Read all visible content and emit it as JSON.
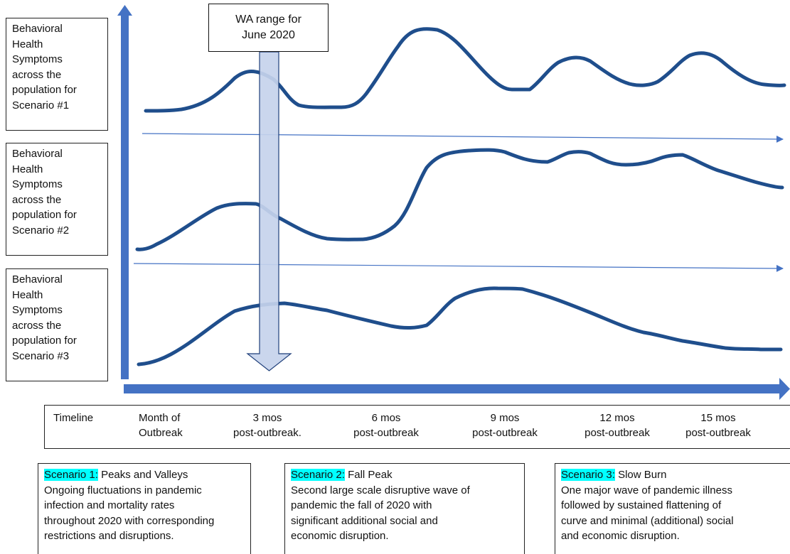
{
  "callout": {
    "line1": "WA range for",
    "line2": "June 2020"
  },
  "y_labels": [
    {
      "lines": [
        "Behavioral",
        "Health",
        "Symptoms",
        "across the",
        "population for",
        "Scenario #1"
      ]
    },
    {
      "lines": [
        "Behavioral",
        "Health",
        "Symptoms",
        "across the",
        "population for",
        "Scenario #2"
      ]
    },
    {
      "lines": [
        "Behavioral",
        "Health",
        "Symptoms",
        "across the",
        "population for",
        "Scenario #3"
      ]
    }
  ],
  "timeline": {
    "title": "Timeline",
    "ticks": [
      {
        "line1": "Month of",
        "line2": "Outbreak"
      },
      {
        "line1": "3 mos",
        "line2": "post-outbreak."
      },
      {
        "line1": "6 mos",
        "line2": "post-outbreak"
      },
      {
        "line1": "9 mos",
        "line2": "post-outbreak"
      },
      {
        "line1": "12 mos",
        "line2": "post-outbreak"
      },
      {
        "line1": "15 mos",
        "line2": "post-outbreak"
      }
    ]
  },
  "scenarios": [
    {
      "tag": "Scenario 1:",
      "name": "Peaks and Valleys",
      "desc": [
        "Ongoing fluctuations in pandemic",
        "infection and mortality rates",
        "throughout 2020 with corresponding",
        "restrictions and disruptions."
      ]
    },
    {
      "tag": "Scenario 2:",
      "name": "Fall Peak",
      "desc": [
        "Second large scale disruptive wave of",
        "pandemic the fall of 2020 with",
        "significant additional social and",
        "economic disruption."
      ]
    },
    {
      "tag": "Scenario 3:",
      "name": "Slow Burn",
      "desc": [
        "One major wave of pandemic illness",
        "followed by sustained flattening of",
        "curve and minimal (additional) social",
        "and economic disruption."
      ]
    }
  ],
  "colors": {
    "axis": "#4472c4",
    "curve": "#1f4e8c",
    "highlight": "#00ffff",
    "range_arrow_fill": "#c5d3ec"
  }
}
